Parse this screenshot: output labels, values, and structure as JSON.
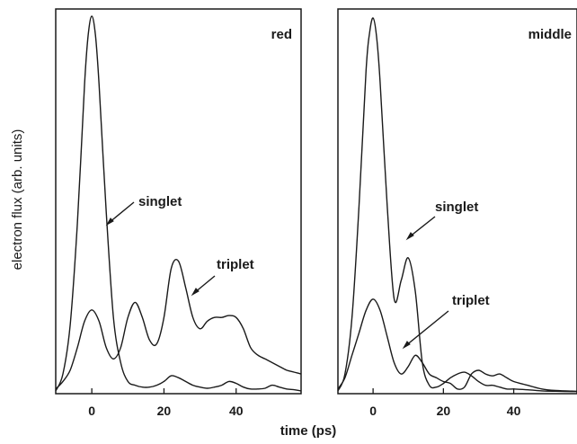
{
  "chart_data": [
    {
      "type": "line",
      "title": "red",
      "xlabel": "time (ps)",
      "ylabel": "electron flux (arb. units)",
      "xlim": [
        -10,
        58
      ],
      "ylim": [
        0,
        1.0
      ],
      "x_ticks": [
        0,
        20,
        40
      ],
      "grid": false,
      "series": [
        {
          "name": "singlet",
          "x": [
            -10,
            -8,
            -6,
            -4,
            -2,
            -1,
            0,
            1,
            2,
            4,
            6,
            8,
            10,
            12,
            14,
            16,
            18,
            20,
            22,
            24,
            26,
            28,
            30,
            32,
            34,
            36,
            38,
            40,
            42,
            44,
            46,
            48,
            50,
            52,
            54,
            56,
            58
          ],
          "y": [
            0.005,
            0.05,
            0.18,
            0.45,
            0.82,
            0.95,
            1.0,
            0.95,
            0.82,
            0.48,
            0.2,
            0.08,
            0.03,
            0.02,
            0.015,
            0.015,
            0.02,
            0.03,
            0.045,
            0.04,
            0.03,
            0.02,
            0.015,
            0.012,
            0.015,
            0.02,
            0.03,
            0.025,
            0.015,
            0.01,
            0.01,
            0.012,
            0.02,
            0.015,
            0.01,
            0.008,
            0.005
          ]
        },
        {
          "name": "triplet",
          "x": [
            -10,
            -8,
            -6,
            -4,
            -2,
            0,
            2,
            4,
            6,
            8,
            10,
            12,
            14,
            16,
            18,
            20,
            22,
            24,
            26,
            28,
            30,
            32,
            34,
            36,
            38,
            40,
            42,
            44,
            46,
            48,
            50,
            52,
            54,
            56,
            58
          ],
          "y": [
            0.01,
            0.03,
            0.06,
            0.12,
            0.19,
            0.22,
            0.19,
            0.12,
            0.09,
            0.12,
            0.2,
            0.24,
            0.2,
            0.14,
            0.13,
            0.2,
            0.33,
            0.35,
            0.28,
            0.2,
            0.17,
            0.19,
            0.2,
            0.2,
            0.205,
            0.2,
            0.17,
            0.12,
            0.1,
            0.09,
            0.08,
            0.07,
            0.06,
            0.055,
            0.05
          ]
        }
      ]
    },
    {
      "type": "line",
      "title": "middle",
      "xlabel": "time (ps)",
      "xlim": [
        -10,
        58
      ],
      "ylim": [
        0,
        1.0
      ],
      "x_ticks": [
        0,
        20,
        40
      ],
      "grid": false,
      "series": [
        {
          "name": "singlet",
          "x": [
            -10,
            -8,
            -6,
            -4,
            -2,
            -1,
            0,
            1,
            2,
            4,
            6,
            8,
            10,
            12,
            14,
            16,
            18,
            20,
            22,
            24,
            26,
            28,
            30,
            32,
            34,
            36,
            38,
            40,
            44,
            48,
            52,
            58
          ],
          "y": [
            0.005,
            0.05,
            0.2,
            0.5,
            0.86,
            0.96,
            1.0,
            0.95,
            0.83,
            0.5,
            0.25,
            0.3,
            0.36,
            0.27,
            0.08,
            0.02,
            0.015,
            0.025,
            0.04,
            0.05,
            0.055,
            0.045,
            0.03,
            0.02,
            0.02,
            0.015,
            0.01,
            0.01,
            0.008,
            0.005,
            0.004,
            0.003
          ]
        },
        {
          "name": "triplet",
          "x": [
            -10,
            -8,
            -6,
            -4,
            -2,
            0,
            2,
            4,
            6,
            8,
            10,
            12,
            14,
            16,
            18,
            20,
            22,
            24,
            26,
            28,
            30,
            32,
            34,
            36,
            38,
            40,
            44,
            48,
            52,
            58
          ],
          "y": [
            0.01,
            0.04,
            0.1,
            0.16,
            0.22,
            0.25,
            0.22,
            0.15,
            0.08,
            0.05,
            0.07,
            0.1,
            0.08,
            0.05,
            0.04,
            0.03,
            0.025,
            0.01,
            0.015,
            0.05,
            0.06,
            0.05,
            0.045,
            0.05,
            0.04,
            0.03,
            0.02,
            0.01,
            0.006,
            0.004
          ]
        }
      ]
    }
  ],
  "annotations": {
    "panel1_singlet": "singlet",
    "panel1_triplet": "triplet",
    "panel2_singlet": "singlet",
    "panel2_triplet": "triplet"
  },
  "colors": {
    "line": "#1a1a1a",
    "frame": "#1a1a1a",
    "background": "#ffffff"
  }
}
